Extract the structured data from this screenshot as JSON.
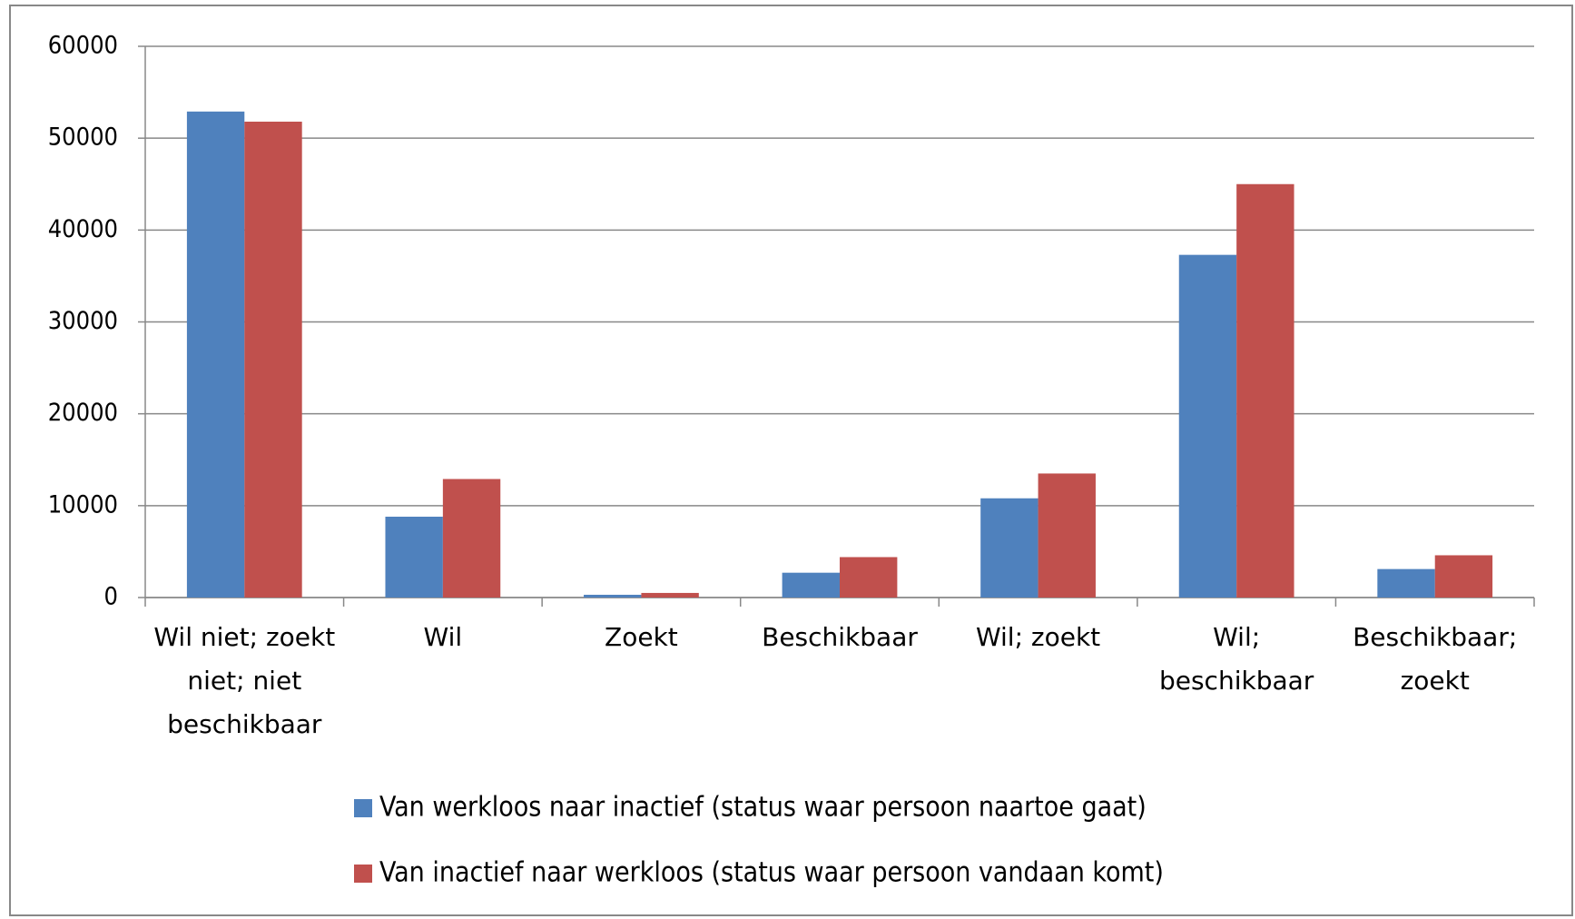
{
  "chart_data": {
    "type": "bar",
    "categories": [
      "Wil niet; zoekt niet; niet beschikbaar",
      "Wil",
      "Zoekt",
      "Beschikbaar",
      "Wil; zoekt",
      "Wil; beschikbaar",
      "Beschikbaar; zoekt"
    ],
    "series": [
      {
        "name": "Van werkloos naar inactief (status waar persoon naartoe gaat)",
        "color": "#4f81bd",
        "values": [
          52900,
          8800,
          300,
          2700,
          10800,
          37300,
          3100
        ]
      },
      {
        "name": "Van inactief naar werkloos (status waar persoon vandaan komt)",
        "color": "#c0504d",
        "values": [
          51800,
          12900,
          500,
          4400,
          13500,
          45000,
          4600
        ]
      }
    ],
    "ylim": [
      0,
      60000
    ],
    "yticks": [
      0,
      10000,
      20000,
      30000,
      40000,
      50000,
      60000
    ],
    "grid": true,
    "legend": "bottom"
  }
}
